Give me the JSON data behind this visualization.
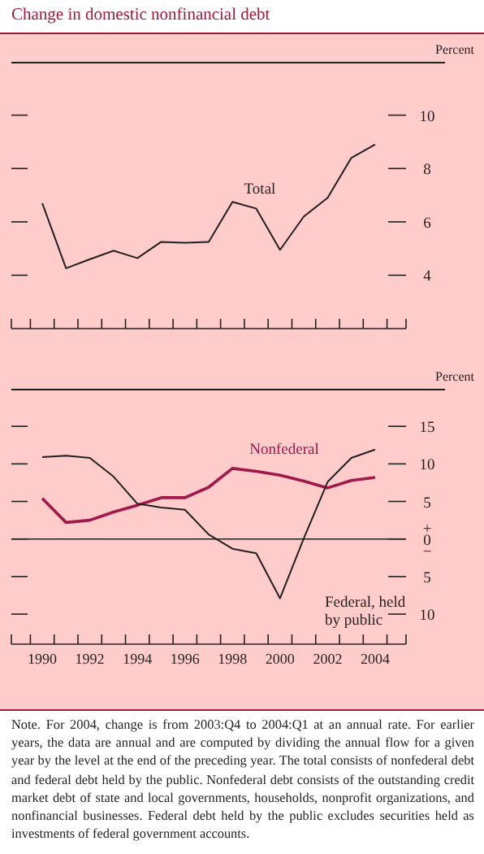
{
  "chart_data": [
    {
      "type": "line",
      "title": "Change in domestic nonfinancial debt",
      "ylabel": "Percent",
      "tick_labels": "y",
      "x": [
        1990,
        1991,
        1992,
        1993,
        1994,
        1995,
        1996,
        1997,
        1998,
        1999,
        2000,
        2001,
        2002,
        2003,
        2004
      ],
      "series": [
        {
          "name": "Total",
          "color": "#231f20",
          "values": [
            6.7,
            4.26,
            4.6,
            4.92,
            4.64,
            5.25,
            5.22,
            5.25,
            6.75,
            6.5,
            4.95,
            6.2,
            6.9,
            8.4,
            8.9
          ]
        }
      ],
      "xlim": [
        1988.7,
        2005.3
      ],
      "xticks": [
        {
          "value": 1988.7,
          "label": null
        },
        {
          "value": 1989.5,
          "label": null
        },
        {
          "value": 1990.5,
          "label": null
        },
        {
          "value": 1991.5,
          "label": null
        },
        {
          "value": 1992.5,
          "label": null
        },
        {
          "value": 1993.5,
          "label": null
        },
        {
          "value": 1994.5,
          "label": null
        },
        {
          "value": 1995.5,
          "label": null
        },
        {
          "value": 1996.5,
          "label": null
        },
        {
          "value": 1997.5,
          "label": null
        },
        {
          "value": 1998.5,
          "label": null
        },
        {
          "value": 1999.5,
          "label": null
        },
        {
          "value": 2000.5,
          "label": null
        },
        {
          "value": 2001.5,
          "label": null
        },
        {
          "value": 2002.5,
          "label": null
        },
        {
          "value": 2003.5,
          "label": null
        },
        {
          "value": 2004.5,
          "label": null
        },
        {
          "value": 2005.3,
          "label": null
        }
      ],
      "ylim": [
        2,
        12
      ],
      "yticks": [
        4,
        6,
        8,
        10
      ]
    },
    {
      "type": "line",
      "ylabel": "Percent",
      "x": [
        1990,
        1991,
        1992,
        1993,
        1994,
        1995,
        1996,
        1997,
        1998,
        1999,
        2000,
        2001,
        2002,
        2003,
        2004
      ],
      "series": [
        {
          "name": "Nonfederal",
          "color": "#a3184a",
          "values": [
            5.4,
            2.2,
            2.5,
            3.6,
            4.5,
            5.5,
            5.5,
            6.9,
            9.4,
            9.0,
            8.5,
            7.7,
            6.8,
            7.8,
            8.2
          ]
        },
        {
          "name": "Federal, held by public",
          "color": "#231f20",
          "values": [
            10.9,
            11.1,
            10.8,
            8.3,
            4.7,
            4.2,
            3.9,
            0.6,
            -1.3,
            -1.9,
            -7.9,
            0.1,
            7.6,
            10.8,
            11.9
          ]
        }
      ],
      "xlim": [
        1988.7,
        2005.3
      ],
      "xticks": [
        {
          "value": 1988.7,
          "label": null
        },
        {
          "value": 1989.5,
          "label": null
        },
        1990,
        {
          "value": 1990.5,
          "label": null
        },
        {
          "value": 1991.5,
          "label": null
        },
        1992,
        {
          "value": 1992.5,
          "label": null
        },
        {
          "value": 1993.5,
          "label": null
        },
        1994,
        {
          "value": 1994.5,
          "label": null
        },
        {
          "value": 1995.5,
          "label": null
        },
        1996,
        {
          "value": 1996.5,
          "label": null
        },
        {
          "value": 1997.5,
          "label": null
        },
        1998,
        {
          "value": 1998.5,
          "label": null
        },
        {
          "value": 1999.5,
          "label": null
        },
        2000,
        {
          "value": 2000.5,
          "label": null
        },
        {
          "value": 2001.5,
          "label": null
        },
        2002,
        {
          "value": 2002.5,
          "label": null
        },
        {
          "value": 2003.5,
          "label": null
        },
        2004,
        {
          "value": 2004.5,
          "label": null
        },
        {
          "value": 2005.3,
          "label": null
        }
      ],
      "ylim": [
        -14,
        20
      ],
      "yticks": [
        {
          "value": -10,
          "label": "10"
        },
        {
          "value": -5,
          "label": "5"
        },
        {
          "value": 0,
          "label": "+0−"
        },
        5,
        10,
        15
      ],
      "ref_lines": [
        {
          "axis": "y",
          "value": 0
        }
      ],
      "annotations": [
        "Note. For 2004, change is from 2003:Q4 to 2004:Q1 at an annual rate. For earlier years, the data are annual and are computed by dividing the annual flow for a given year by the level at the end of the preceding year. The total consists of nonfederal debt and federal debt held by the public. Nonfederal debt consists of the outstanding credit market debt of state and local governments, households, nonprofit organizations, and nonfinancial businesses. Federal debt held by the public excludes securities held as investments of federal government accounts."
      ]
    }
  ]
}
